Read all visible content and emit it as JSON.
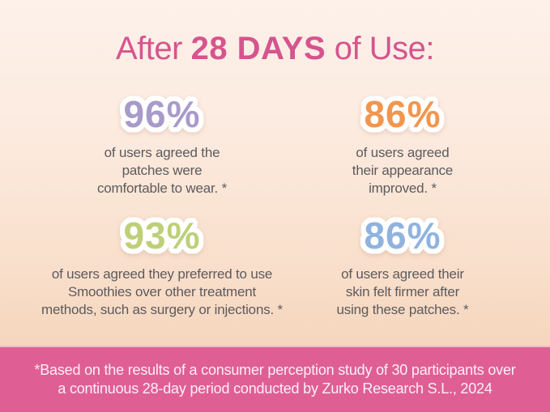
{
  "title": {
    "prefix": "After ",
    "highlight": "28 DAYS",
    "suffix": " of Use:"
  },
  "stats": [
    {
      "value": "96%",
      "color": "#a89bc9",
      "lines": [
        "of users agreed the",
        "patches were",
        "comfortable to wear. *"
      ]
    },
    {
      "value": "86%",
      "color": "#f2964e",
      "lines": [
        "of users agreed",
        "their appearance",
        "improved. *"
      ]
    },
    {
      "value": "93%",
      "color": "#bdd078",
      "lines": [
        "of users agreed they preferred to use",
        "Smoothies over other treatment",
        "methods, such as surgery or injections. *"
      ]
    },
    {
      "value": "86%",
      "color": "#90b3de",
      "lines": [
        "of users agreed their",
        "skin felt firmer after",
        "using these patches. *"
      ]
    }
  ],
  "footer": {
    "line1": "*Based on the results of a consumer perception study of 30 participants over",
    "line2": "a continuous 28-day period conducted by Zurko Research S.L., 2024"
  },
  "colors": {
    "title_pink": "#d6548e",
    "footer_bg": "#df5f95",
    "footer_text": "#fdeff6",
    "body_text": "#5c5b5e",
    "stat_purple": "#a89bc9",
    "stat_orange": "#f2964e",
    "stat_green": "#bdd078",
    "stat_blue": "#90b3de",
    "bg_top": "#fdf1ea",
    "bg_bottom": "#f6d9be"
  },
  "chart_data": {
    "type": "table",
    "title": "After 28 DAYS of Use:",
    "categories": [
      "of users agreed the patches were comfortable to wear. *",
      "of users agreed their appearance improved. *",
      "of users agreed they preferred to use Smoothies over other treatment methods, such as surgery or injections. *",
      "of users agreed their skin felt firmer after using these patches. *"
    ],
    "values": [
      96,
      86,
      93,
      86
    ],
    "unit": "%",
    "annotations": [
      "*Based on the results of a consumer perception study of 30 participants over a continuous 28-day period conducted by Zurko Research S.L., 2024"
    ]
  }
}
